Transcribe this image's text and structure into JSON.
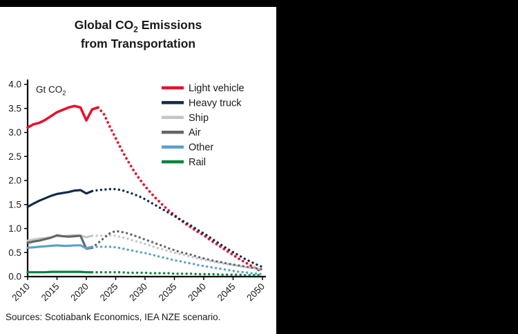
{
  "title": {
    "line1_pre": "Global CO",
    "line1_sub": "2",
    "line1_post": " Emissions",
    "line2": "from Transportation"
  },
  "axis_unit": {
    "pre": "Gt CO",
    "sub": "2"
  },
  "source": "Sources: Scotiabank Economics, IEA NZE scenario.",
  "chart_data": {
    "type": "line",
    "title": "Global CO2 Emissions from Transportation",
    "ylabel": "Gt CO2",
    "xlabel": "",
    "x_range": [
      2010,
      2050
    ],
    "y_range": [
      0,
      4.0
    ],
    "y_ticks": [
      0,
      0.5,
      1.0,
      1.5,
      2.0,
      2.5,
      3.0,
      3.5,
      4.0
    ],
    "x_ticks": [
      2010,
      2015,
      2020,
      2025,
      2030,
      2035,
      2040,
      2045,
      2050
    ],
    "legend_position": "top-right-inside",
    "grid": false,
    "style_note": "solid line = historical, dotted = IEA NZE scenario projection",
    "series": [
      {
        "name": "Light vehicle",
        "color": "#e8112d",
        "width": 3.6,
        "years_start": 2010,
        "solid_until": 2022,
        "values": [
          3.1,
          3.17,
          3.2,
          3.26,
          3.34,
          3.42,
          3.47,
          3.52,
          3.55,
          3.52,
          3.25,
          3.48,
          3.52,
          3.38,
          3.12,
          2.88,
          2.64,
          2.42,
          2.22,
          2.04,
          1.88,
          1.74,
          1.61,
          1.49,
          1.38,
          1.28,
          1.18,
          1.09,
          1.01,
          0.93,
          0.86,
          0.77,
          0.69,
          0.61,
          0.53,
          0.45,
          0.37,
          0.3,
          0.23,
          0.16,
          0.1
        ]
      },
      {
        "name": "Heavy truck",
        "color": "#13294b",
        "width": 3.2,
        "years_start": 2010,
        "solid_until": 2021,
        "values": [
          1.45,
          1.52,
          1.58,
          1.63,
          1.68,
          1.72,
          1.74,
          1.76,
          1.79,
          1.8,
          1.73,
          1.78,
          1.8,
          1.81,
          1.82,
          1.82,
          1.8,
          1.76,
          1.72,
          1.67,
          1.61,
          1.54,
          1.47,
          1.4,
          1.33,
          1.26,
          1.19,
          1.12,
          1.05,
          0.97,
          0.9,
          0.82,
          0.74,
          0.66,
          0.58,
          0.51,
          0.44,
          0.37,
          0.31,
          0.25,
          0.2
        ]
      },
      {
        "name": "Ship",
        "color": "#c1c6c8",
        "width": 3.2,
        "years_start": 2010,
        "solid_until": 2021,
        "values": [
          0.75,
          0.77,
          0.79,
          0.8,
          0.82,
          0.84,
          0.84,
          0.85,
          0.86,
          0.85,
          0.82,
          0.85,
          0.85,
          0.85,
          0.86,
          0.85,
          0.82,
          0.79,
          0.75,
          0.72,
          0.68,
          0.64,
          0.6,
          0.57,
          0.53,
          0.5,
          0.47,
          0.44,
          0.41,
          0.38,
          0.35,
          0.33,
          0.3,
          0.28,
          0.26,
          0.24,
          0.22,
          0.2,
          0.18,
          0.17,
          0.15
        ]
      },
      {
        "name": "Air",
        "color": "#63666a",
        "width": 3.2,
        "years_start": 2010,
        "solid_until": 2021,
        "values": [
          0.7,
          0.73,
          0.75,
          0.78,
          0.81,
          0.86,
          0.84,
          0.83,
          0.84,
          0.85,
          0.58,
          0.6,
          0.7,
          0.8,
          0.9,
          0.95,
          0.93,
          0.9,
          0.86,
          0.82,
          0.77,
          0.73,
          0.68,
          0.64,
          0.59,
          0.55,
          0.51,
          0.48,
          0.45,
          0.41,
          0.38,
          0.35,
          0.32,
          0.3,
          0.27,
          0.25,
          0.23,
          0.21,
          0.19,
          0.17,
          0.15
        ]
      },
      {
        "name": "Other",
        "color": "#58a0cf",
        "width": 3.2,
        "years_start": 2010,
        "solid_until": 2021,
        "values": [
          0.6,
          0.61,
          0.62,
          0.63,
          0.64,
          0.65,
          0.64,
          0.64,
          0.65,
          0.65,
          0.59,
          0.62,
          0.62,
          0.62,
          0.62,
          0.61,
          0.59,
          0.56,
          0.54,
          0.51,
          0.49,
          0.46,
          0.43,
          0.4,
          0.37,
          0.34,
          0.32,
          0.29,
          0.27,
          0.24,
          0.22,
          0.2,
          0.18,
          0.16,
          0.14,
          0.12,
          0.1,
          0.09,
          0.07,
          0.06,
          0.05
        ]
      },
      {
        "name": "Rail",
        "color": "#00843d",
        "width": 3.2,
        "years_start": 2010,
        "solid_until": 2021,
        "values": [
          0.09,
          0.09,
          0.09,
          0.09,
          0.1,
          0.1,
          0.1,
          0.1,
          0.1,
          0.1,
          0.09,
          0.09,
          0.09,
          0.09,
          0.09,
          0.09,
          0.09,
          0.08,
          0.08,
          0.08,
          0.08,
          0.07,
          0.07,
          0.07,
          0.07,
          0.06,
          0.06,
          0.06,
          0.06,
          0.05,
          0.05,
          0.05,
          0.05,
          0.04,
          0.04,
          0.04,
          0.04,
          0.03,
          0.03,
          0.03,
          0.03
        ]
      }
    ]
  }
}
